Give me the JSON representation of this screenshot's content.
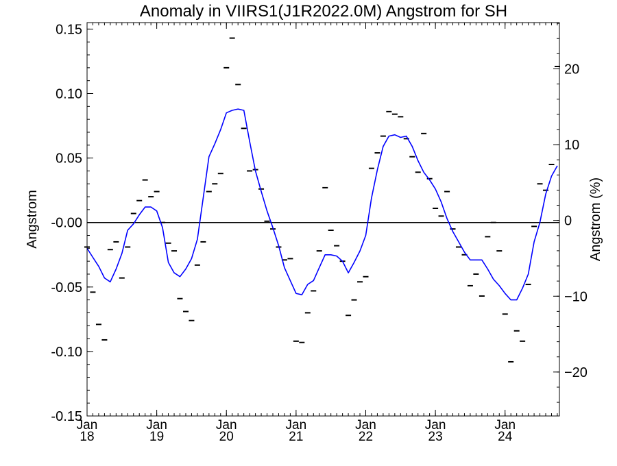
{
  "chart_data": {
    "type": "line",
    "title": "Anomaly in VIIRS1(J1R2022.0M) Angstrom for SH",
    "ylabel": "Angstrom",
    "ylabel_right": "Angstrom (%)",
    "ylim": [
      -0.15,
      0.155
    ],
    "ylim_right": [
      -25.8,
      26.1
    ],
    "yticks": [
      "0.15",
      "0.10",
      "0.05",
      "-0.00",
      "-0.05",
      "-0.10",
      "-0.15"
    ],
    "yticks_values": [
      0.15,
      0.1,
      0.05,
      0.0,
      -0.05,
      -0.1,
      -0.15
    ],
    "yticks_right": [
      "20",
      "10",
      "0",
      "−10",
      "−20"
    ],
    "yticks_right_values": [
      20,
      10,
      0,
      -10,
      -20
    ],
    "xlim": [
      2018.0,
      2024.78
    ],
    "xticks": [
      {
        "x": 2018.0,
        "month": "Jan",
        "year": "18"
      },
      {
        "x": 2019.0,
        "month": "Jan",
        "year": "19"
      },
      {
        "x": 2020.0,
        "month": "Jan",
        "year": "20"
      },
      {
        "x": 2021.0,
        "month": "Jan",
        "year": "21"
      },
      {
        "x": 2022.0,
        "month": "Jan",
        "year": "22"
      },
      {
        "x": 2023.0,
        "month": "Jan",
        "year": "23"
      },
      {
        "x": 2024.0,
        "month": "Jan",
        "year": "24"
      }
    ],
    "zero_line": 0,
    "series": [
      {
        "style": "dash-markers",
        "color": "#000000",
        "x": [
          2018.0,
          2018.083,
          2018.167,
          2018.25,
          2018.333,
          2018.417,
          2018.5,
          2018.583,
          2018.667,
          2018.75,
          2018.833,
          2018.917,
          2019.0,
          2019.083,
          2019.167,
          2019.25,
          2019.333,
          2019.417,
          2019.5,
          2019.583,
          2019.667,
          2019.75,
          2019.833,
          2019.917,
          2020.0,
          2020.083,
          2020.167,
          2020.25,
          2020.333,
          2020.417,
          2020.5,
          2020.583,
          2020.667,
          2020.75,
          2020.833,
          2020.917,
          2021.0,
          2021.083,
          2021.167,
          2021.25,
          2021.333,
          2021.417,
          2021.5,
          2021.583,
          2021.667,
          2021.75,
          2021.833,
          2021.917,
          2022.0,
          2022.083,
          2022.167,
          2022.25,
          2022.333,
          2022.417,
          2022.5,
          2022.583,
          2022.667,
          2022.75,
          2022.833,
          2022.917,
          2023.0,
          2023.083,
          2023.167,
          2023.25,
          2023.333,
          2023.417,
          2023.5,
          2023.583,
          2023.667,
          2023.75,
          2023.833,
          2023.917,
          2024.0,
          2024.083,
          2024.167,
          2024.25,
          2024.333,
          2024.417,
          2024.5,
          2024.583,
          2024.667,
          2024.75
        ],
        "values": [
          -0.019,
          -0.054,
          -0.079,
          -0.091,
          -0.021,
          -0.015,
          -0.043,
          -0.019,
          0.007,
          0.017,
          0.033,
          0.02,
          0.024,
          0.0,
          -0.016,
          -0.022,
          -0.059,
          -0.069,
          -0.076,
          -0.033,
          -0.015,
          0.024,
          0.03,
          0.038,
          0.12,
          0.143,
          0.107,
          0.073,
          0.04,
          0.041,
          0.026,
          0.001,
          -0.005,
          -0.019,
          -0.029,
          -0.028,
          -0.092,
          -0.093,
          -0.07,
          -0.053,
          -0.022,
          0.027,
          -0.006,
          -0.018,
          -0.03,
          -0.072,
          -0.06,
          -0.046,
          -0.042,
          0.042,
          0.054,
          0.067,
          0.086,
          0.084,
          0.082,
          0.065,
          0.051,
          0.039,
          0.069,
          0.034,
          0.011,
          0.005,
          0.024,
          -0.005,
          -0.019,
          -0.025,
          -0.049,
          -0.04,
          -0.057,
          -0.011,
          0.0,
          -0.022,
          -0.071,
          -0.108,
          -0.084,
          -0.092,
          -0.048,
          -0.003,
          0.03,
          0.025,
          0.045,
          0.121
        ]
      },
      {
        "style": "line",
        "color": "#0000ff",
        "x": [
          2018.0,
          2018.083,
          2018.167,
          2018.25,
          2018.333,
          2018.417,
          2018.5,
          2018.583,
          2018.667,
          2018.75,
          2018.833,
          2018.917,
          2019.0,
          2019.083,
          2019.167,
          2019.25,
          2019.333,
          2019.417,
          2019.5,
          2019.583,
          2019.667,
          2019.75,
          2019.833,
          2019.917,
          2020.0,
          2020.083,
          2020.167,
          2020.25,
          2020.333,
          2020.417,
          2020.5,
          2020.583,
          2020.667,
          2020.75,
          2020.833,
          2020.917,
          2021.0,
          2021.083,
          2021.167,
          2021.25,
          2021.333,
          2021.417,
          2021.5,
          2021.583,
          2021.667,
          2021.75,
          2021.833,
          2021.917,
          2022.0,
          2022.083,
          2022.167,
          2022.25,
          2022.333,
          2022.417,
          2022.5,
          2022.583,
          2022.667,
          2022.75,
          2022.833,
          2022.917,
          2023.0,
          2023.083,
          2023.167,
          2023.25,
          2023.333,
          2023.417,
          2023.5,
          2023.583,
          2023.667,
          2023.75,
          2023.833,
          2023.917,
          2024.0,
          2024.083,
          2024.167,
          2024.25,
          2024.333,
          2024.417,
          2024.5,
          2024.583,
          2024.667,
          2024.75
        ],
        "values": [
          -0.02,
          -0.027,
          -0.034,
          -0.043,
          -0.046,
          -0.036,
          -0.024,
          -0.006,
          -0.001,
          0.006,
          0.012,
          0.012,
          0.009,
          -0.004,
          -0.031,
          -0.039,
          -0.042,
          -0.036,
          -0.028,
          -0.013,
          0.019,
          0.051,
          0.061,
          0.072,
          0.085,
          0.087,
          0.088,
          0.087,
          0.063,
          0.04,
          0.024,
          0.009,
          -0.004,
          -0.018,
          -0.035,
          -0.045,
          -0.055,
          -0.056,
          -0.048,
          -0.045,
          -0.035,
          -0.025,
          -0.025,
          -0.026,
          -0.03,
          -0.039,
          -0.031,
          -0.022,
          -0.01,
          0.019,
          0.041,
          0.059,
          0.067,
          0.068,
          0.066,
          0.067,
          0.059,
          0.048,
          0.039,
          0.033,
          0.026,
          0.016,
          0.003,
          -0.007,
          -0.015,
          -0.023,
          -0.029,
          -0.029,
          -0.029,
          -0.036,
          -0.044,
          -0.049,
          -0.055,
          -0.06,
          -0.06,
          -0.051,
          -0.04,
          -0.015,
          0.0,
          0.022,
          0.036,
          0.044
        ]
      }
    ]
  }
}
